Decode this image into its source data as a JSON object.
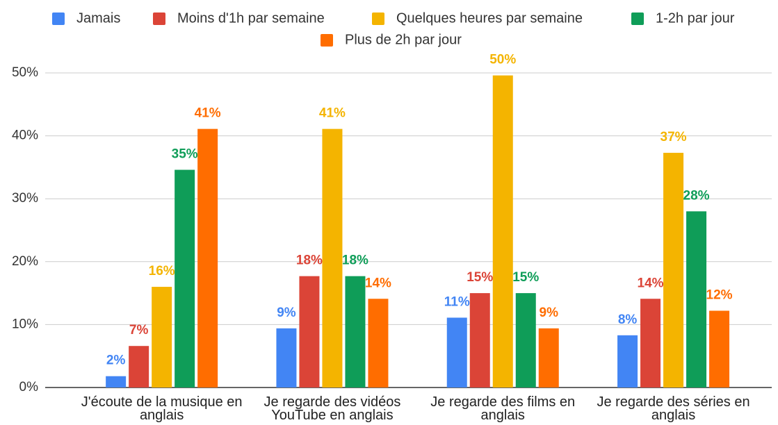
{
  "chart_data": {
    "type": "bar",
    "categories": [
      "J'écoute de la musique en anglais",
      "Je regarde des vidéos YouTube en anglais",
      "Je regarde des films en anglais",
      "Je regarde des séries en anglais"
    ],
    "series": [
      {
        "name": "Jamais",
        "color": "#4285f4",
        "values": [
          1.8,
          9.4,
          11.1,
          8.3
        ],
        "value_labels": [
          "2%",
          "9%",
          "11%",
          "8%"
        ]
      },
      {
        "name": "Moins d'1h par semaine",
        "color": "#db4437",
        "values": [
          6.6,
          17.7,
          15,
          14.1
        ],
        "value_labels": [
          "7%",
          "18%",
          "15%",
          "14%"
        ]
      },
      {
        "name": "Quelques heures par semaine",
        "color": "#f4b400",
        "values": [
          16,
          41.1,
          49.6,
          37.3
        ],
        "value_labels": [
          "16%",
          "41%",
          "50%",
          "37%"
        ]
      },
      {
        "name": "1-2h par jour",
        "color": "#0f9d58",
        "values": [
          34.6,
          17.7,
          15,
          28
        ],
        "value_labels": [
          "35%",
          "18%",
          "15%",
          "28%"
        ]
      },
      {
        "name": "Plus de 2h par jour",
        "color": "#ff6d00",
        "values": [
          41.1,
          14.1,
          9.4,
          12.2
        ],
        "value_labels": [
          "41%",
          "14%",
          "9%",
          "12%"
        ]
      }
    ],
    "ylim": [
      0,
      50
    ],
    "yticks": [
      {
        "value": 0,
        "label": "0%"
      },
      {
        "value": 10,
        "label": "10%"
      },
      {
        "value": 20,
        "label": "20%"
      },
      {
        "value": 30,
        "label": "30%"
      },
      {
        "value": 40,
        "label": "40%"
      },
      {
        "value": 50,
        "label": "50%"
      }
    ],
    "grid": true,
    "legend": "top"
  }
}
